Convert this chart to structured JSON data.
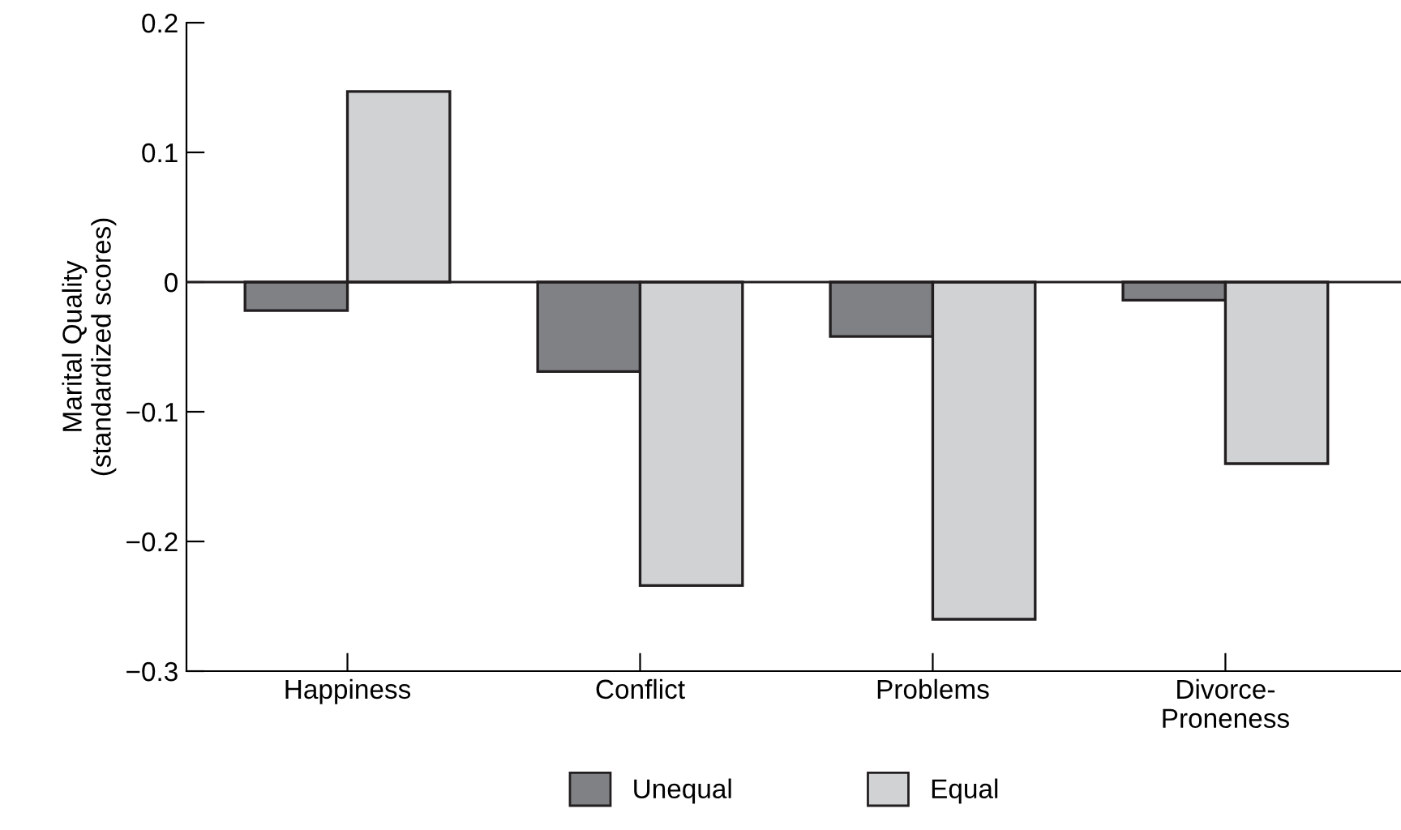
{
  "chart_data": {
    "type": "bar",
    "ylabel": "Marital Quality\n(standardized scores)",
    "categories": [
      "Happiness",
      "Conflict",
      "Problems",
      "Divorce-\nProneness"
    ],
    "series": [
      {
        "name": "Unequal",
        "color": "#808184",
        "values": [
          -0.022,
          -0.069,
          -0.042,
          -0.014
        ]
      },
      {
        "name": "Equal",
        "color": "#d1d2d4",
        "values": [
          0.147,
          -0.234,
          -0.26,
          -0.14
        ]
      }
    ],
    "ylim": [
      -0.3,
      0.2
    ],
    "yticks": [
      {
        "value": 0.2,
        "label": "0.2"
      },
      {
        "value": 0.1,
        "label": "0.1"
      },
      {
        "value": 0,
        "label": "0"
      },
      {
        "value": -0.1,
        "label": "−0.1"
      },
      {
        "value": -0.2,
        "label": "−0.2"
      },
      {
        "value": -0.3,
        "label": "−0.3"
      }
    ],
    "ref_lines": [
      {
        "axis": "y",
        "value": 0,
        "color": "#231f20"
      }
    ],
    "legend": "bottom",
    "grid": false
  }
}
